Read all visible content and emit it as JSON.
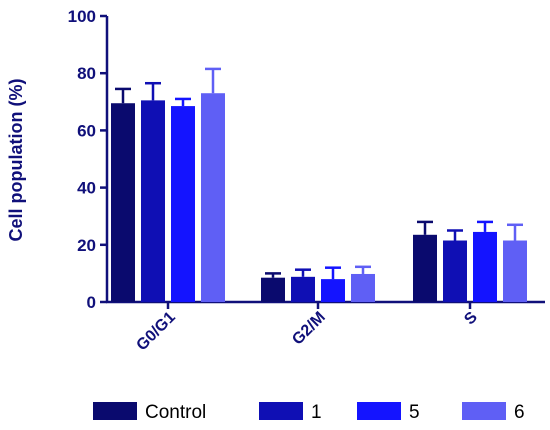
{
  "chart_data": {
    "type": "bar",
    "title": "",
    "xlabel": "",
    "ylabel": "Cell population (%)",
    "ylim": [
      0,
      100
    ],
    "yticks": [
      0,
      20,
      40,
      60,
      80,
      100
    ],
    "categories": [
      "G0/G1",
      "G2/M",
      "S"
    ],
    "series": [
      {
        "name": "Control",
        "values": [
          69.5,
          8.5,
          23.5
        ],
        "errors": [
          5,
          1.5,
          4.5
        ],
        "color": "#0a0a6e"
      },
      {
        "name": "1",
        "values": [
          70.5,
          8.8,
          21.5
        ],
        "errors": [
          6,
          2.5,
          3.5
        ],
        "color": "#0f0fb4"
      },
      {
        "name": "5",
        "values": [
          68.5,
          8.0,
          24.5
        ],
        "errors": [
          2.5,
          4.0,
          3.5
        ],
        "color": "#1414ff"
      },
      {
        "name": "6",
        "values": [
          73.0,
          9.8,
          21.5
        ],
        "errors": [
          8.5,
          2.5,
          5.5
        ],
        "color": "#5f5ff5"
      }
    ],
    "grid": false,
    "legend_position": "bottom",
    "axis_color": "#10107a",
    "error_bars": true
  }
}
